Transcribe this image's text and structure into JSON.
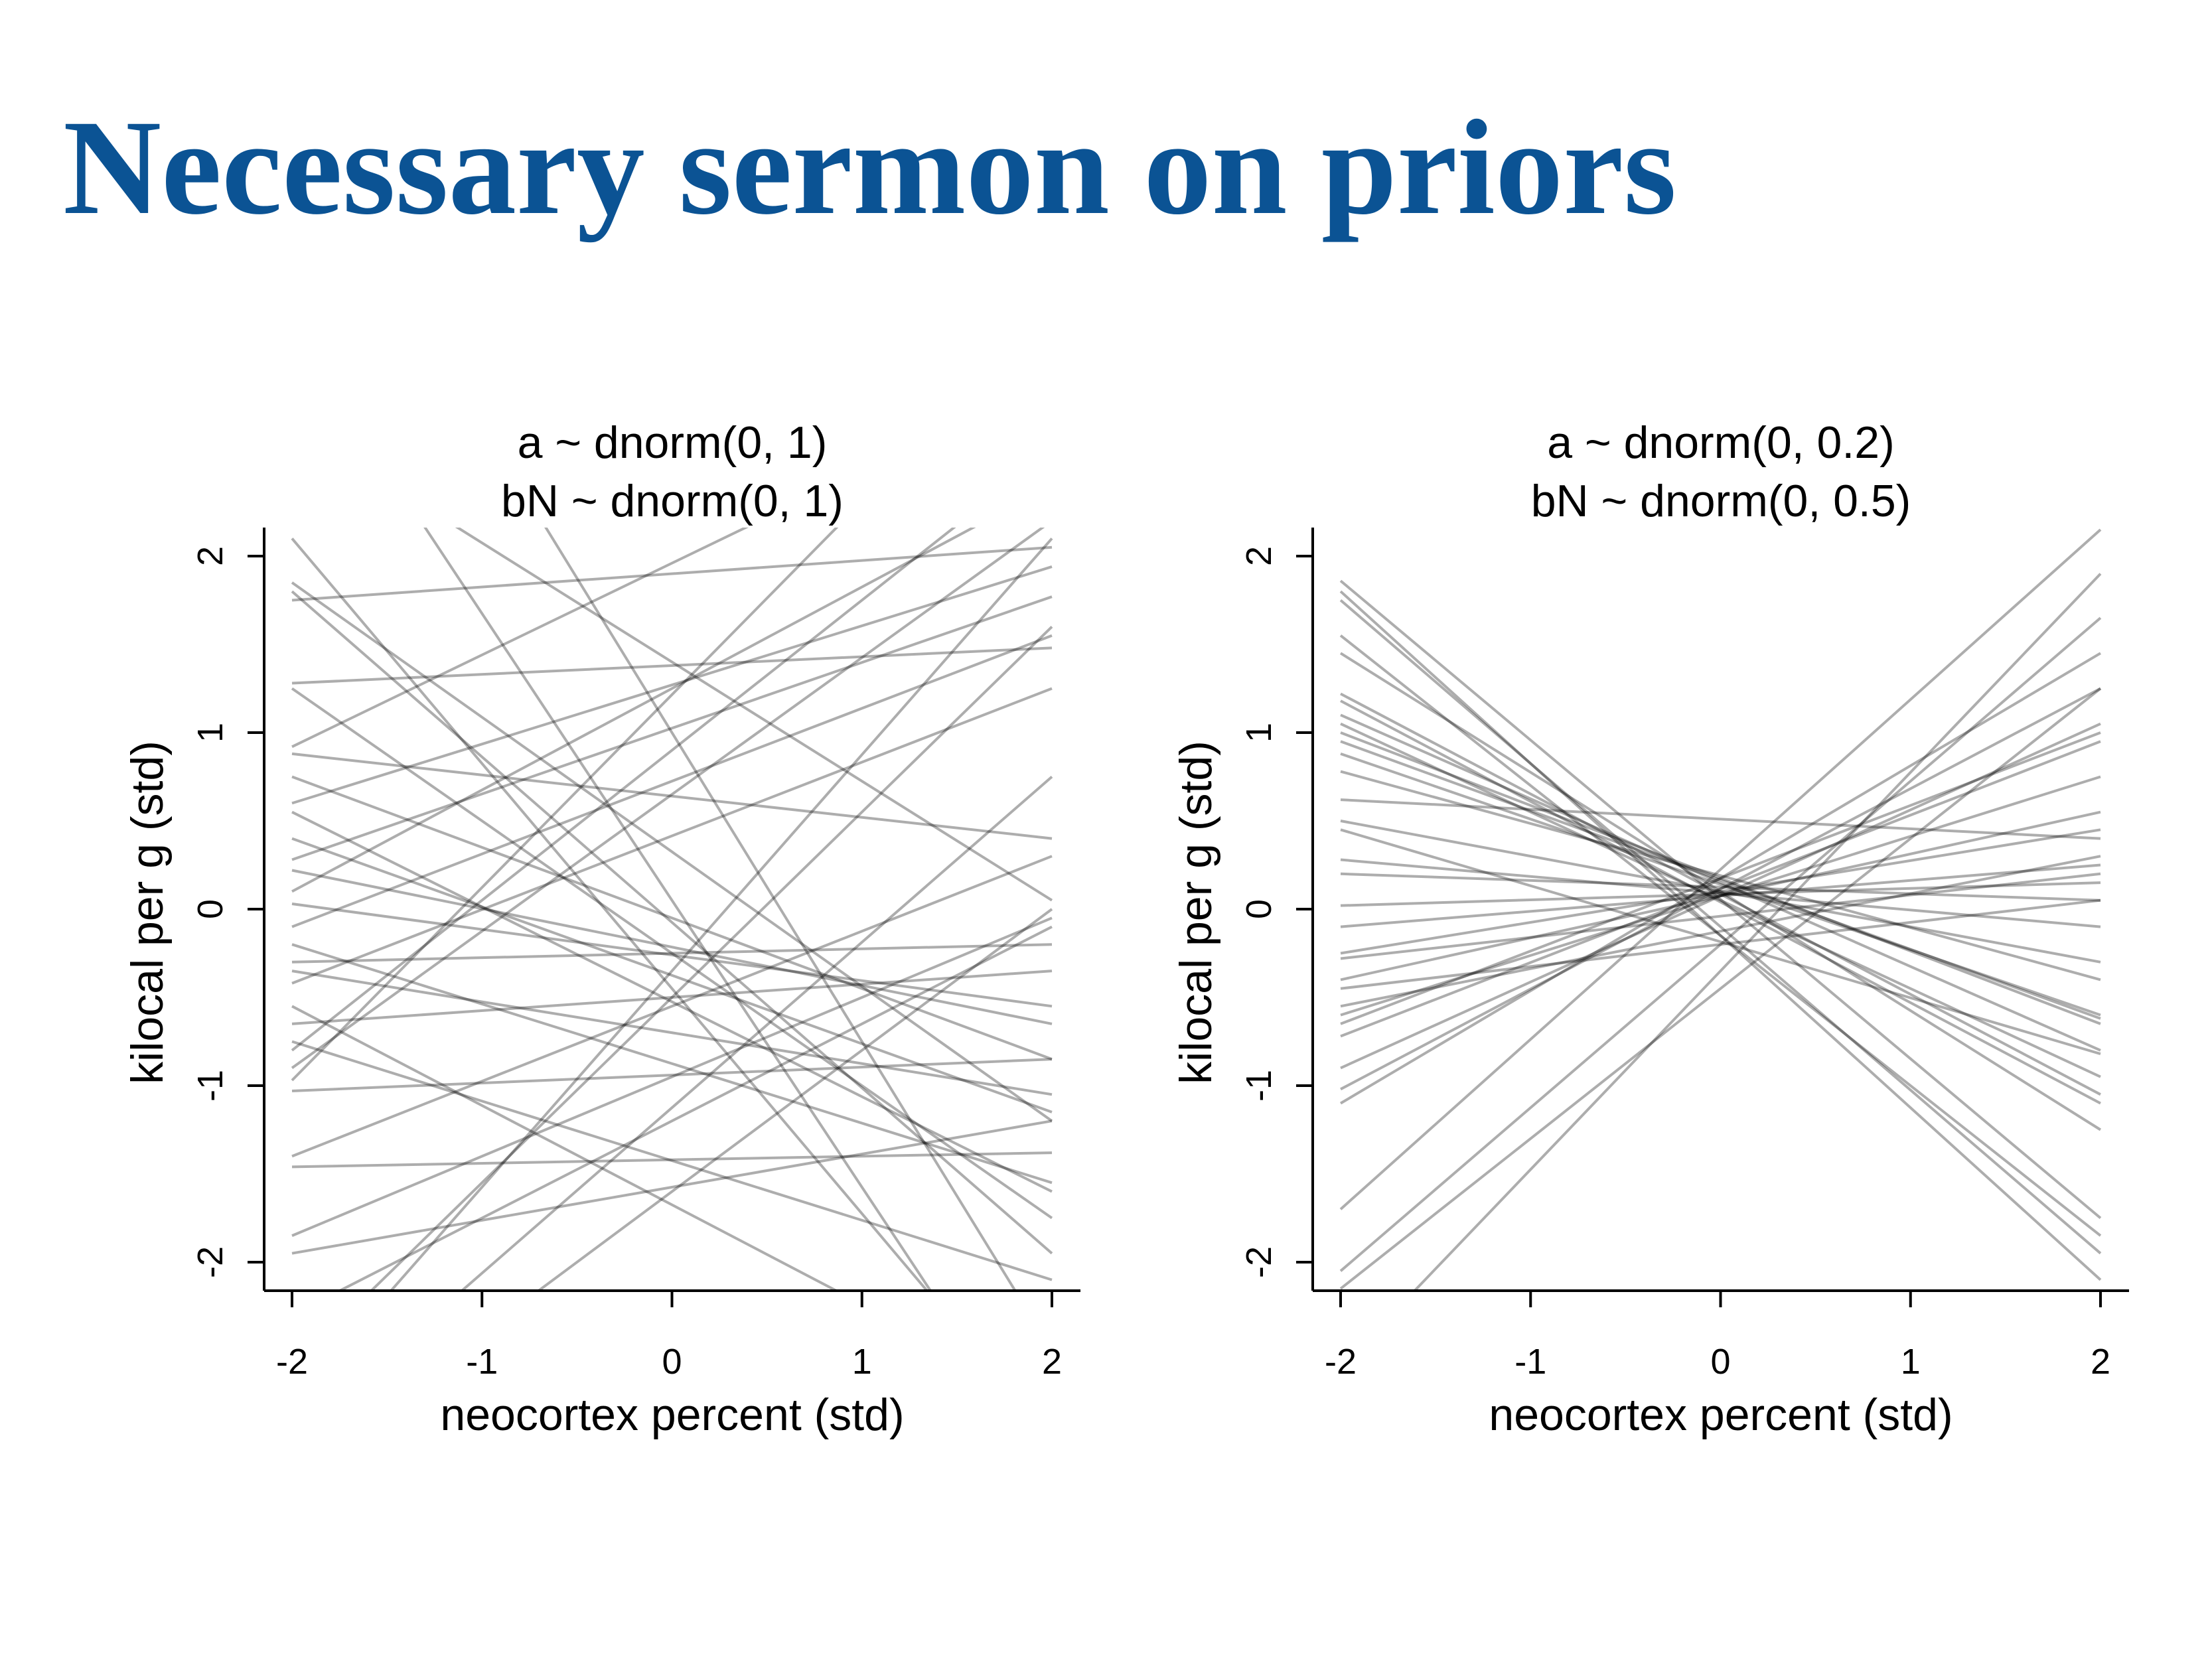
{
  "slide": {
    "title": "Necessary sermon on priors"
  },
  "colors": {
    "title": "#0b5394",
    "line": "#000000",
    "axis": "#000000"
  },
  "chart_data": [
    {
      "type": "line",
      "title_lines": [
        "a ~ dnorm(0, 1)",
        "bN ~ dnorm(0, 1)"
      ],
      "xlabel": "neocortex percent (std)",
      "ylabel": "kilocal per g (std)",
      "xlim": [
        -2,
        2
      ],
      "ylim": [
        -2,
        2
      ],
      "xticks": [
        "-2",
        "-1",
        "0",
        "1",
        "2"
      ],
      "yticks": [
        "-2",
        "-1",
        "0",
        "1",
        "2"
      ],
      "grid": false,
      "x": [
        -2,
        2
      ],
      "series": [
        {
          "values": [
            2.1,
            -3.0
          ]
        },
        {
          "values": [
            1.85,
            -1.2
          ]
        },
        {
          "values": [
            1.75,
            2.05
          ]
        },
        {
          "values": [
            1.28,
            1.48
          ]
        },
        {
          "values": [
            0.92,
            3.0
          ]
        },
        {
          "values": [
            0.88,
            0.4
          ]
        },
        {
          "values": [
            0.6,
            1.94
          ]
        },
        {
          "values": [
            0.55,
            -1.6
          ]
        },
        {
          "values": [
            0.28,
            1.77
          ]
        },
        {
          "values": [
            0.22,
            -0.65
          ]
        },
        {
          "values": [
            0.03,
            -0.55
          ]
        },
        {
          "values": [
            -0.1,
            1.55
          ]
        },
        {
          "values": [
            -0.35,
            -1.05
          ]
        },
        {
          "values": [
            -0.42,
            1.25
          ]
        },
        {
          "values": [
            -0.65,
            -0.35
          ]
        },
        {
          "values": [
            -0.8,
            2.6
          ]
        },
        {
          "values": [
            -0.97,
            3.4
          ]
        },
        {
          "values": [
            -1.03,
            -0.85
          ]
        },
        {
          "values": [
            -1.4,
            0.3
          ]
        },
        {
          "values": [
            -1.46,
            -1.38
          ]
        },
        {
          "values": [
            -1.85,
            -0.05
          ]
        },
        {
          "values": [
            -1.95,
            -1.2
          ]
        },
        {
          "values": [
            -3.0,
            0.75
          ]
        },
        {
          "values": [
            -3.2,
            0.0
          ]
        },
        {
          "values": [
            1.8,
            -1.95
          ]
        },
        {
          "values": [
            1.25,
            -1.75
          ]
        },
        {
          "values": [
            -0.2,
            -1.55
          ]
        },
        {
          "values": [
            -0.55,
            -2.8
          ]
        },
        {
          "values": [
            2.75,
            0.05
          ]
        },
        {
          "values": [
            3.3,
            -3.2
          ]
        },
        {
          "values": [
            4.5,
            -2.5
          ]
        },
        {
          "values": [
            0.4,
            -1.15
          ]
        },
        {
          "values": [
            -0.3,
            -0.2
          ]
        },
        {
          "values": [
            -0.9,
            2.2
          ]
        },
        {
          "values": [
            -2.6,
            1.6
          ]
        },
        {
          "values": [
            -2.3,
            -0.1
          ]
        },
        {
          "values": [
            -2.8,
            2.1
          ]
        },
        {
          "values": [
            0.1,
            2.4
          ]
        },
        {
          "values": [
            -0.75,
            -2.1
          ]
        },
        {
          "values": [
            0.75,
            -0.85
          ]
        }
      ]
    },
    {
      "type": "line",
      "title_lines": [
        "a ~ dnorm(0, 0.2)",
        "bN ~ dnorm(0, 0.5)"
      ],
      "xlabel": "neocortex percent (std)",
      "ylabel": "kilocal per g (std)",
      "xlim": [
        -2,
        2
      ],
      "ylim": [
        -2,
        2
      ],
      "xticks": [
        "-2",
        "-1",
        "0",
        "1",
        "2"
      ],
      "yticks": [
        "-2",
        "-1",
        "0",
        "1",
        "2"
      ],
      "grid": false,
      "x": [
        -2,
        2
      ],
      "series": [
        {
          "values": [
            1.86,
            -1.75
          ]
        },
        {
          "values": [
            1.8,
            -2.1
          ]
        },
        {
          "values": [
            1.75,
            -1.95
          ]
        },
        {
          "values": [
            1.55,
            -1.85
          ]
        },
        {
          "values": [
            1.45,
            -1.25
          ]
        },
        {
          "values": [
            1.22,
            -1.05
          ]
        },
        {
          "values": [
            1.18,
            -1.1
          ]
        },
        {
          "values": [
            1.1,
            -0.8
          ]
        },
        {
          "values": [
            1.05,
            -0.95
          ]
        },
        {
          "values": [
            0.95,
            -0.62
          ]
        },
        {
          "values": [
            0.88,
            -0.6
          ]
        },
        {
          "values": [
            0.78,
            -0.4
          ]
        },
        {
          "values": [
            0.5,
            -0.3
          ]
        },
        {
          "values": [
            0.28,
            -0.1
          ]
        },
        {
          "values": [
            0.2,
            0.05
          ]
        },
        {
          "values": [
            0.02,
            0.15
          ]
        },
        {
          "values": [
            -0.1,
            0.25
          ]
        },
        {
          "values": [
            -0.28,
            0.2
          ]
        },
        {
          "values": [
            -0.4,
            0.55
          ]
        },
        {
          "values": [
            -0.55,
            0.3
          ]
        },
        {
          "values": [
            -0.6,
            0.75
          ]
        },
        {
          "values": [
            -0.72,
            0.95
          ]
        },
        {
          "values": [
            -0.9,
            1.05
          ]
        },
        {
          "values": [
            -1.02,
            1.25
          ]
        },
        {
          "values": [
            -1.1,
            1.45
          ]
        },
        {
          "values": [
            -1.7,
            2.15
          ]
        },
        {
          "values": [
            -2.05,
            1.65
          ]
        },
        {
          "values": [
            -2.6,
            1.9
          ]
        },
        {
          "values": [
            -2.15,
            1.25
          ]
        },
        {
          "values": [
            -0.25,
            0.45
          ]
        },
        {
          "values": [
            -0.65,
            1.0
          ]
        },
        {
          "values": [
            0.45,
            -0.82
          ]
        },
        {
          "values": [
            0.62,
            0.4
          ]
        },
        {
          "values": [
            1.0,
            -0.65
          ]
        },
        {
          "values": [
            -0.45,
            0.05
          ]
        }
      ]
    }
  ]
}
